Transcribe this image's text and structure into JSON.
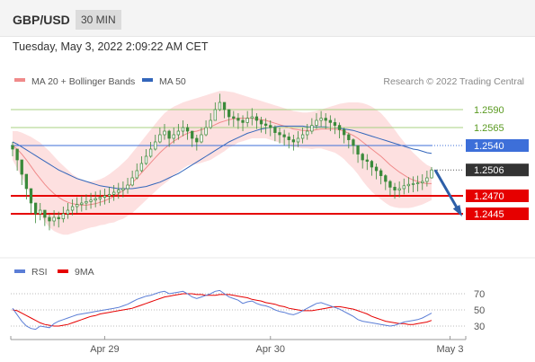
{
  "header": {
    "symbol": "GBP/USD",
    "timeframe": "30 MIN"
  },
  "datetime": "Tuesday, May 3, 2022 2:09:22 AM CET",
  "legend": {
    "ma_bb": "MA 20 + Bollinger Bands",
    "ma50": "MA 50",
    "copyright": "Research © 2022 Trading Central",
    "rsi": "RSI",
    "ma9": "9MA"
  },
  "colors": {
    "bb_fill": "#fde0e0",
    "ma20": "#f08a8a",
    "ma50": "#3366bb",
    "candle": "#3a8a3a",
    "resistance": "#a8d080",
    "pivot": "#3d6fd9",
    "support": "#e60000",
    "rsi": "#5b7ed6",
    "rsi_ma": "#e60000",
    "arrow": "#2d5fa8"
  },
  "chart_data": {
    "type": "line",
    "main": {
      "y_domain": [
        1.2405,
        1.262
      ],
      "levels": [
        {
          "value": 1.259,
          "label": "1.2590",
          "kind": "resistance"
        },
        {
          "value": 1.2565,
          "label": "1.2565",
          "kind": "resistance"
        },
        {
          "value": 1.254,
          "label": "1.2540",
          "kind": "pivot"
        },
        {
          "value": 1.2506,
          "label": "1.2506",
          "kind": "current"
        },
        {
          "value": 1.247,
          "label": "1.2470",
          "kind": "support"
        },
        {
          "value": 1.2445,
          "label": "1.2445",
          "kind": "support"
        }
      ],
      "x_ticks": [
        {
          "index": 20,
          "label": "Apr 29"
        },
        {
          "index": 56,
          "label": "Apr 30"
        },
        {
          "index": 95,
          "label": "May 3"
        }
      ],
      "close": [
        1.2535,
        1.252,
        1.25,
        1.248,
        1.246,
        1.2445,
        1.245,
        1.244,
        1.2435,
        1.244,
        1.2438,
        1.2445,
        1.245,
        1.2455,
        1.2458,
        1.246,
        1.2462,
        1.2464,
        1.2466,
        1.2468,
        1.247,
        1.2472,
        1.2475,
        1.2478,
        1.248,
        1.2485,
        1.2495,
        1.2505,
        1.2515,
        1.2525,
        1.2535,
        1.2545,
        1.2555,
        1.256,
        1.255,
        1.2555,
        1.256,
        1.2565,
        1.256,
        1.255,
        1.2545,
        1.2555,
        1.2565,
        1.2575,
        1.259,
        1.26,
        1.259,
        1.258,
        1.2578,
        1.2575,
        1.2572,
        1.2578,
        1.258,
        1.2575,
        1.257,
        1.2568,
        1.2565,
        1.2558,
        1.2555,
        1.2552,
        1.2548,
        1.2545,
        1.255,
        1.2555,
        1.256,
        1.2568,
        1.2575,
        1.2578,
        1.2575,
        1.2572,
        1.2568,
        1.2562,
        1.2555,
        1.2548,
        1.254,
        1.2528,
        1.252,
        1.2518,
        1.251,
        1.2505,
        1.2498,
        1.249,
        1.2482,
        1.2478,
        1.248,
        1.2484,
        1.2486,
        1.2487,
        1.2488,
        1.249,
        1.2495,
        1.2506
      ],
      "high": [
        1.2545,
        1.253,
        1.251,
        1.249,
        1.247,
        1.2455,
        1.246,
        1.245,
        1.2445,
        1.245,
        1.2448,
        1.2455,
        1.246,
        1.2465,
        1.2468,
        1.247,
        1.2472,
        1.2474,
        1.2476,
        1.2478,
        1.248,
        1.2482,
        1.2485,
        1.2488,
        1.249,
        1.2495,
        1.2505,
        1.2515,
        1.2525,
        1.2535,
        1.2545,
        1.2555,
        1.2565,
        1.257,
        1.2562,
        1.2565,
        1.257,
        1.2575,
        1.257,
        1.256,
        1.2555,
        1.2565,
        1.2575,
        1.2585,
        1.26,
        1.2612,
        1.26,
        1.259,
        1.2588,
        1.2585,
        1.2582,
        1.2588,
        1.2592,
        1.2585,
        1.258,
        1.2578,
        1.2575,
        1.2568,
        1.2565,
        1.2562,
        1.2558,
        1.2555,
        1.256,
        1.2565,
        1.257,
        1.2578,
        1.2585,
        1.2588,
        1.2585,
        1.2582,
        1.2578,
        1.2572,
        1.2565,
        1.2558,
        1.255,
        1.2538,
        1.253,
        1.2528,
        1.252,
        1.2515,
        1.2508,
        1.25,
        1.2492,
        1.2488,
        1.249,
        1.2494,
        1.2496,
        1.2497,
        1.2498,
        1.25,
        1.2505,
        1.251
      ],
      "low": [
        1.2525,
        1.2505,
        1.2485,
        1.2465,
        1.2445,
        1.2432,
        1.2436,
        1.2428,
        1.2422,
        1.2428,
        1.2426,
        1.2433,
        1.2438,
        1.2443,
        1.2446,
        1.2448,
        1.245,
        1.2452,
        1.2454,
        1.2456,
        1.2458,
        1.246,
        1.2463,
        1.2466,
        1.2468,
        1.2473,
        1.2483,
        1.2493,
        1.2503,
        1.2513,
        1.2523,
        1.2533,
        1.2543,
        1.2548,
        1.2538,
        1.2543,
        1.2548,
        1.2553,
        1.2548,
        1.2538,
        1.2533,
        1.2543,
        1.2553,
        1.2563,
        1.2578,
        1.2588,
        1.2578,
        1.2568,
        1.2566,
        1.2563,
        1.256,
        1.2566,
        1.2568,
        1.2563,
        1.2558,
        1.2556,
        1.2553,
        1.2546,
        1.2543,
        1.254,
        1.2536,
        1.2533,
        1.2538,
        1.2543,
        1.2548,
        1.2556,
        1.2563,
        1.2566,
        1.2563,
        1.256,
        1.2556,
        1.255,
        1.2543,
        1.2536,
        1.2528,
        1.2516,
        1.2508,
        1.2506,
        1.2498,
        1.2493,
        1.2486,
        1.2478,
        1.247,
        1.2466,
        1.2468,
        1.2472,
        1.2474,
        1.2475,
        1.2476,
        1.2478,
        1.2483,
        1.2494
      ],
      "ma20": [
        1.254,
        1.2535,
        1.2528,
        1.252,
        1.2511,
        1.2502,
        1.2494,
        1.2486,
        1.2479,
        1.2473,
        1.2468,
        1.2464,
        1.2461,
        1.2459,
        1.2458,
        1.2457,
        1.2457,
        1.2458,
        1.2459,
        1.2461,
        1.2463,
        1.2466,
        1.2469,
        1.2473,
        1.2477,
        1.2482,
        1.2488,
        1.2495,
        1.2502,
        1.2509,
        1.2516,
        1.2523,
        1.253,
        1.2536,
        1.2541,
        1.2546,
        1.255,
        1.2554,
        1.2557,
        1.2559,
        1.256,
        1.2562,
        1.2564,
        1.2566,
        1.2569,
        1.2572,
        1.2574,
        1.2576,
        1.2577,
        1.2578,
        1.2578,
        1.2578,
        1.2578,
        1.2577,
        1.2576,
        1.2575,
        1.2573,
        1.2571,
        1.2569,
        1.2567,
        1.2565,
        1.2563,
        1.2562,
        1.2561,
        1.2561,
        1.2561,
        1.2562,
        1.2563,
        1.2563,
        1.2563,
        1.2563,
        1.2562,
        1.256,
        1.2557,
        1.2554,
        1.255,
        1.2545,
        1.254,
        1.2535,
        1.253,
        1.2525,
        1.2519,
        1.2513,
        1.2508,
        1.2503,
        1.2499,
        1.2495,
        1.2492,
        1.249,
        1.2488,
        1.2487,
        1.2487
      ],
      "ma50": [
        1.2545,
        1.2542,
        1.2538,
        1.2534,
        1.253,
        1.2526,
        1.2522,
        1.2518,
        1.2514,
        1.251,
        1.2506,
        1.2503,
        1.25,
        1.2497,
        1.2494,
        1.2492,
        1.249,
        1.2488,
        1.2486,
        1.2484,
        1.2483,
        1.2482,
        1.2481,
        1.248,
        1.248,
        1.248,
        1.248,
        1.2481,
        1.2482,
        1.2483,
        1.2485,
        1.2487,
        1.2489,
        1.2492,
        1.2495,
        1.2498,
        1.2501,
        1.2505,
        1.2509,
        1.2513,
        1.2517,
        1.2521,
        1.2525,
        1.2529,
        1.2533,
        1.2537,
        1.2541,
        1.2545,
        1.2548,
        1.2551,
        1.2554,
        1.2557,
        1.2559,
        1.2561,
        1.2563,
        1.2564,
        1.2565,
        1.2566,
        1.2567,
        1.2567,
        1.2567,
        1.2567,
        1.2567,
        1.2567,
        1.2566,
        1.2566,
        1.2566,
        1.2566,
        1.2566,
        1.2565,
        1.2565,
        1.2564,
        1.2563,
        1.2562,
        1.2561,
        1.2559,
        1.2557,
        1.2555,
        1.2553,
        1.2551,
        1.2549,
        1.2547,
        1.2545,
        1.2543,
        1.2541,
        1.2539,
        1.2537,
        1.2535,
        1.2534,
        1.2532,
        1.253,
        1.2529
      ],
      "bb_upper": [
        1.256,
        1.256,
        1.2558,
        1.2555,
        1.2552,
        1.2548,
        1.2544,
        1.2538,
        1.2532,
        1.2525,
        1.2518,
        1.2512,
        1.2506,
        1.25,
        1.2496,
        1.2492,
        1.249,
        1.249,
        1.2491,
        1.2493,
        1.2496,
        1.25,
        1.2505,
        1.251,
        1.2516,
        1.2522,
        1.253,
        1.2538,
        1.2546,
        1.2554,
        1.2562,
        1.257,
        1.2578,
        1.2585,
        1.259,
        1.2594,
        1.2597,
        1.26,
        1.2602,
        1.2604,
        1.2606,
        1.2608,
        1.261,
        1.2612,
        1.2614,
        1.2616,
        1.2616,
        1.2615,
        1.2614,
        1.2612,
        1.261,
        1.2608,
        1.2606,
        1.2604,
        1.2602,
        1.26,
        1.2598,
        1.2596,
        1.2594,
        1.2592,
        1.259,
        1.2588,
        1.2587,
        1.2586,
        1.2586,
        1.2587,
        1.2588,
        1.259,
        1.2592,
        1.2594,
        1.2596,
        1.2598,
        1.2599,
        1.26,
        1.26,
        1.26,
        1.2599,
        1.2597,
        1.2594,
        1.259,
        1.2585,
        1.2578,
        1.257,
        1.2562,
        1.2553,
        1.2545,
        1.2537,
        1.253,
        1.2524,
        1.2518,
        1.2513,
        1.251
      ],
      "bb_lower": [
        1.252,
        1.2508,
        1.2496,
        1.2484,
        1.247,
        1.2456,
        1.2444,
        1.2434,
        1.2426,
        1.2421,
        1.2418,
        1.2416,
        1.2416,
        1.2418,
        1.242,
        1.2422,
        1.2424,
        1.2426,
        1.2427,
        1.2429,
        1.243,
        1.2432,
        1.2433,
        1.2436,
        1.2438,
        1.2442,
        1.2446,
        1.2452,
        1.2458,
        1.2464,
        1.247,
        1.2476,
        1.2482,
        1.2487,
        1.2492,
        1.2498,
        1.2503,
        1.2508,
        1.2512,
        1.2514,
        1.2514,
        1.2516,
        1.2518,
        1.252,
        1.2524,
        1.2528,
        1.2532,
        1.2537,
        1.254,
        1.2544,
        1.2546,
        1.2548,
        1.255,
        1.255,
        1.255,
        1.255,
        1.2548,
        1.2546,
        1.2544,
        1.2542,
        1.254,
        1.2538,
        1.2537,
        1.2536,
        1.2536,
        1.2535,
        1.2536,
        1.2536,
        1.2534,
        1.2532,
        1.253,
        1.2526,
        1.2521,
        1.2514,
        1.2508,
        1.25,
        1.2491,
        1.2483,
        1.2476,
        1.247,
        1.2465,
        1.246,
        1.2456,
        1.2454,
        1.2453,
        1.2453,
        1.2453,
        1.2454,
        1.2456,
        1.2458,
        1.2461,
        1.2464
      ]
    },
    "rsi": {
      "y_domain": [
        20,
        80
      ],
      "levels": [
        {
          "value": 70,
          "label": "70"
        },
        {
          "value": 50,
          "label": "50"
        },
        {
          "value": 30,
          "label": "30"
        }
      ],
      "rsi": [
        52,
        44,
        36,
        30,
        27,
        26,
        30,
        29,
        28,
        33,
        36,
        38,
        40,
        42,
        44,
        45,
        46,
        47,
        48,
        49,
        50,
        51,
        52,
        53,
        55,
        57,
        60,
        63,
        65,
        67,
        68,
        70,
        72,
        73,
        70,
        71,
        72,
        73,
        70,
        66,
        64,
        66,
        68,
        70,
        73,
        74,
        70,
        66,
        64,
        62,
        58,
        60,
        61,
        58,
        56,
        55,
        53,
        50,
        48,
        47,
        45,
        44,
        46,
        49,
        52,
        55,
        58,
        59,
        57,
        55,
        53,
        51,
        48,
        45,
        42,
        38,
        36,
        35,
        34,
        33,
        32,
        31,
        30,
        31,
        33,
        35,
        36,
        37,
        38,
        40,
        43,
        46
      ],
      "ma9": [
        50,
        49,
        46,
        43,
        40,
        37,
        34,
        32,
        31,
        30,
        30,
        31,
        32,
        34,
        36,
        38,
        40,
        42,
        43,
        45,
        46,
        47,
        48,
        49,
        50,
        51,
        52,
        54,
        56,
        58,
        60,
        62,
        64,
        66,
        67,
        68,
        69,
        70,
        70,
        70,
        69,
        69,
        68,
        68,
        68,
        69,
        69,
        69,
        68,
        67,
        66,
        65,
        63,
        62,
        61,
        59,
        58,
        57,
        55,
        54,
        52,
        51,
        50,
        49,
        49,
        49,
        50,
        51,
        52,
        53,
        54,
        54,
        53,
        52,
        51,
        49,
        47,
        45,
        42,
        40,
        38,
        36,
        35,
        34,
        33,
        33,
        32,
        32,
        33,
        34,
        35,
        37
      ]
    }
  }
}
